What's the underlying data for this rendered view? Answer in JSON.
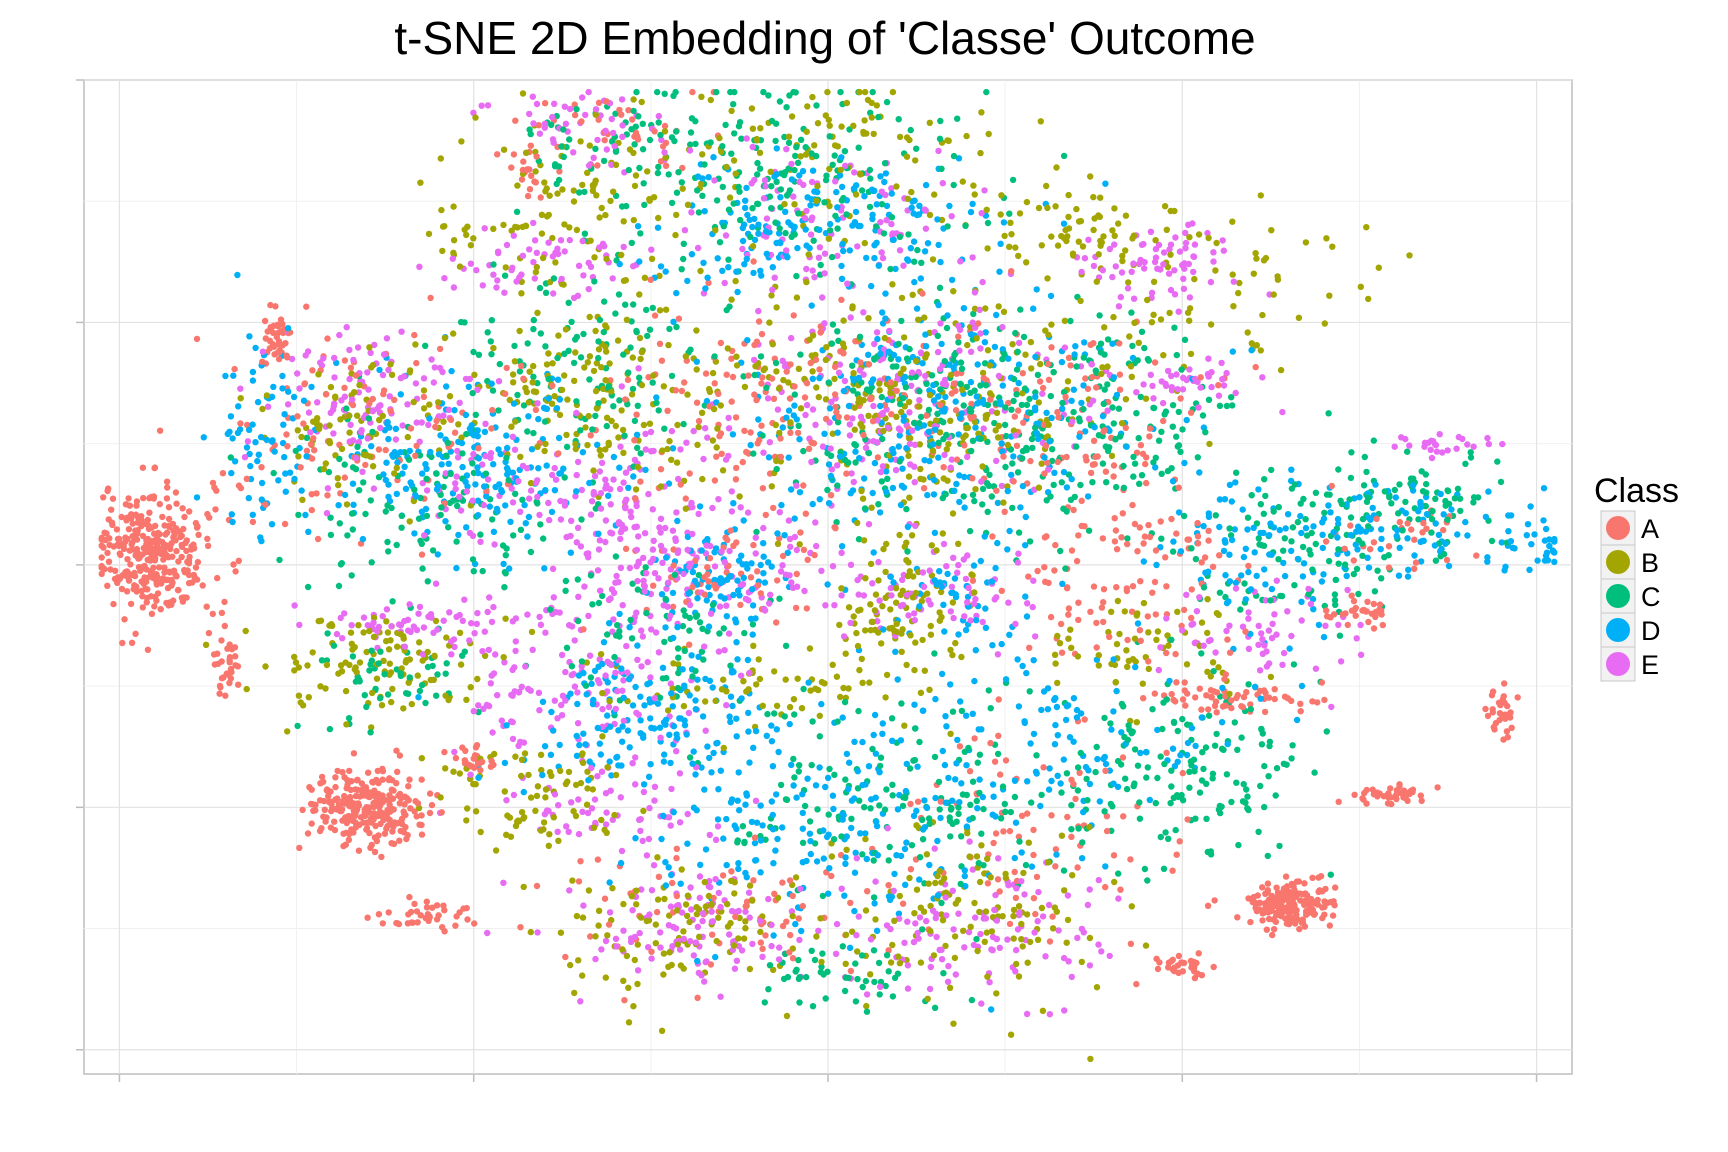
{
  "chart_data": {
    "type": "scatter",
    "title": "t-SNE 2D Embedding of 'Classe' Outcome",
    "xlabel": "",
    "ylabel": "",
    "xlim": [
      -42,
      42
    ],
    "ylim": [
      -42,
      40
    ],
    "x_ticks": [
      -40,
      -20,
      0,
      20,
      40
    ],
    "y_ticks": [
      -40,
      -20,
      0,
      20,
      40
    ],
    "grid": true,
    "axis_tick_labels_shown": false,
    "legend": {
      "title": "Class",
      "position": "right"
    },
    "series": [
      {
        "name": "A",
        "color": "#F8766D",
        "clusters": [
          {
            "cx": -38,
            "cy": 1,
            "sx": 1.6,
            "sy": 2.6,
            "n": 320
          },
          {
            "cx": -26,
            "cy": -20,
            "sx": 1.6,
            "sy": 1.6,
            "n": 260
          },
          {
            "cx": 26,
            "cy": -28,
            "sx": 1.2,
            "sy": 0.9,
            "n": 180
          },
          {
            "cx": -20,
            "cy": -16,
            "sx": 0.6,
            "sy": 0.5,
            "n": 25
          },
          {
            "cx": -31,
            "cy": 19,
            "sx": 0.4,
            "sy": 1.2,
            "n": 40
          },
          {
            "cx": -34,
            "cy": -8,
            "sx": 0.4,
            "sy": 1.5,
            "n": 30
          },
          {
            "cx": -17,
            "cy": 32,
            "sx": 0.4,
            "sy": 1.2,
            "n": 15
          },
          {
            "cx": 30,
            "cy": -4,
            "sx": 0.8,
            "sy": 0.6,
            "n": 30
          },
          {
            "cx": 32,
            "cy": -19,
            "sx": 1.4,
            "sy": 0.4,
            "n": 40
          },
          {
            "cx": 23,
            "cy": -11,
            "sx": 2.2,
            "sy": 0.6,
            "n": 60
          },
          {
            "cx": 38,
            "cy": -12,
            "sx": 0.5,
            "sy": 1.2,
            "n": 30
          },
          {
            "cx": 20,
            "cy": -33,
            "sx": 0.8,
            "sy": 0.5,
            "n": 30
          },
          {
            "cx": -22,
            "cy": -29,
            "sx": 1.6,
            "sy": 0.6,
            "n": 40
          },
          {
            "cx": -3,
            "cy": 14,
            "sx": 4.5,
            "sy": 4.5,
            "n": 140
          },
          {
            "cx": 12,
            "cy": 12,
            "sx": 4.0,
            "sy": 4.0,
            "n": 110
          },
          {
            "cx": 17,
            "cy": 0,
            "sx": 3.0,
            "sy": 5.0,
            "n": 120
          },
          {
            "cx": -26,
            "cy": 11,
            "sx": 5.0,
            "sy": 4.0,
            "n": 110
          },
          {
            "cx": -12,
            "cy": 36,
            "sx": 3.0,
            "sy": 2.0,
            "n": 40
          },
          {
            "cx": -5,
            "cy": -28,
            "sx": 5.0,
            "sy": 3.0,
            "n": 70
          },
          {
            "cx": 12,
            "cy": -22,
            "sx": 5.0,
            "sy": 5.0,
            "n": 80
          },
          {
            "cx": -6,
            "cy": 0,
            "sx": 3.0,
            "sy": 3.0,
            "n": 60
          },
          {
            "cx": 32,
            "cy": 2,
            "sx": 2.0,
            "sy": 2.0,
            "n": 30
          }
        ]
      },
      {
        "name": "B",
        "color": "#A3A500",
        "clusters": [
          {
            "cx": -14,
            "cy": 30,
            "sx": 4.0,
            "sy": 4.0,
            "n": 120
          },
          {
            "cx": 0,
            "cy": 35,
            "sx": 4.0,
            "sy": 3.0,
            "n": 90
          },
          {
            "cx": 5,
            "cy": 14,
            "sx": 6.0,
            "sy": 5.0,
            "n": 260
          },
          {
            "cx": -14,
            "cy": 14,
            "sx": 4.0,
            "sy": 4.0,
            "n": 160
          },
          {
            "cx": -25,
            "cy": -8,
            "sx": 3.0,
            "sy": 2.5,
            "n": 110
          },
          {
            "cx": -17,
            "cy": -19,
            "sx": 2.5,
            "sy": 2.0,
            "n": 80
          },
          {
            "cx": 4,
            "cy": -4,
            "sx": 2.0,
            "sy": 3.0,
            "n": 90
          },
          {
            "cx": -8,
            "cy": -30,
            "sx": 4.0,
            "sy": 3.0,
            "n": 110
          },
          {
            "cx": 8,
            "cy": -29,
            "sx": 4.0,
            "sy": 4.0,
            "n": 120
          },
          {
            "cx": 22,
            "cy": 24,
            "sx": 4.0,
            "sy": 3.0,
            "n": 70
          },
          {
            "cx": 18,
            "cy": -7,
            "sx": 3.0,
            "sy": 2.0,
            "n": 60
          },
          {
            "cx": -27,
            "cy": 11,
            "sx": 3.0,
            "sy": 3.0,
            "n": 70
          },
          {
            "cx": -4,
            "cy": -10,
            "sx": 5.0,
            "sy": 2.0,
            "n": 70
          },
          {
            "cx": 13,
            "cy": 28,
            "sx": 3.0,
            "sy": 2.0,
            "n": 60
          }
        ]
      },
      {
        "name": "C",
        "color": "#00BF7D",
        "clusters": [
          {
            "cx": -2,
            "cy": 32,
            "sx": 5.0,
            "sy": 4.0,
            "n": 180
          },
          {
            "cx": 8,
            "cy": 12,
            "sx": 6.0,
            "sy": 5.0,
            "n": 270
          },
          {
            "cx": -22,
            "cy": 5,
            "sx": 4.5,
            "sy": 4.0,
            "n": 140
          },
          {
            "cx": -14,
            "cy": 16,
            "sx": 4.0,
            "sy": 4.0,
            "n": 120
          },
          {
            "cx": 20,
            "cy": -17,
            "sx": 4.0,
            "sy": 4.0,
            "n": 160
          },
          {
            "cx": 4,
            "cy": -20,
            "sx": 5.0,
            "sy": 4.0,
            "n": 150
          },
          {
            "cx": 26,
            "cy": 2,
            "sx": 4.0,
            "sy": 3.0,
            "n": 110
          },
          {
            "cx": 33,
            "cy": 5,
            "sx": 3.0,
            "sy": 2.0,
            "n": 70
          },
          {
            "cx": -9,
            "cy": -6,
            "sx": 3.0,
            "sy": 3.0,
            "n": 70
          },
          {
            "cx": 17,
            "cy": 13,
            "sx": 2.5,
            "sy": 4.0,
            "n": 70
          },
          {
            "cx": -12,
            "cy": 34,
            "sx": 3.0,
            "sy": 2.5,
            "n": 60
          },
          {
            "cx": 1,
            "cy": -34,
            "sx": 3.0,
            "sy": 1.5,
            "n": 50
          },
          {
            "cx": -25,
            "cy": -9,
            "sx": 2.5,
            "sy": 2.0,
            "n": 50
          }
        ]
      },
      {
        "name": "D",
        "color": "#00B0F6",
        "clusters": [
          {
            "cx": 0,
            "cy": 28,
            "sx": 5.0,
            "sy": 3.0,
            "n": 180
          },
          {
            "cx": 6,
            "cy": 12,
            "sx": 6.0,
            "sy": 5.0,
            "n": 280
          },
          {
            "cx": -20,
            "cy": 8,
            "sx": 5.0,
            "sy": 3.5,
            "n": 200
          },
          {
            "cx": -10,
            "cy": -12,
            "sx": 4.0,
            "sy": 3.0,
            "n": 170
          },
          {
            "cx": -6,
            "cy": -1,
            "sx": 2.5,
            "sy": 2.0,
            "n": 90
          },
          {
            "cx": 0,
            "cy": -22,
            "sx": 5.0,
            "sy": 4.0,
            "n": 170
          },
          {
            "cx": 12,
            "cy": -15,
            "sx": 5.0,
            "sy": 4.0,
            "n": 140
          },
          {
            "cx": 24,
            "cy": 1,
            "sx": 3.0,
            "sy": 3.0,
            "n": 90
          },
          {
            "cx": 33,
            "cy": 3,
            "sx": 4.0,
            "sy": 2.0,
            "n": 90
          },
          {
            "cx": 40,
            "cy": 1,
            "sx": 1.0,
            "sy": 0.8,
            "n": 25
          },
          {
            "cx": -32,
            "cy": 11,
            "sx": 1.5,
            "sy": 4.0,
            "n": 70
          },
          {
            "cx": 7,
            "cy": -3,
            "sx": 2.0,
            "sy": 2.0,
            "n": 50
          }
        ]
      },
      {
        "name": "E",
        "color": "#E76BF3",
        "clusters": [
          {
            "cx": -16,
            "cy": 25,
            "sx": 3.0,
            "sy": 1.5,
            "n": 60
          },
          {
            "cx": -14,
            "cy": 36,
            "sx": 3.0,
            "sy": 2.0,
            "n": 50
          },
          {
            "cx": -26,
            "cy": 14,
            "sx": 3.0,
            "sy": 3.0,
            "n": 110
          },
          {
            "cx": -14,
            "cy": 6,
            "sx": 5.0,
            "sy": 3.0,
            "n": 140
          },
          {
            "cx": -8,
            "cy": 0,
            "sx": 4.0,
            "sy": 2.5,
            "n": 130
          },
          {
            "cx": -14,
            "cy": -10,
            "sx": 4.0,
            "sy": 4.0,
            "n": 160
          },
          {
            "cx": -23,
            "cy": -5,
            "sx": 3.0,
            "sy": 1.0,
            "n": 60
          },
          {
            "cx": -13,
            "cy": -21,
            "sx": 3.0,
            "sy": 1.5,
            "n": 50
          },
          {
            "cx": -8,
            "cy": -30,
            "sx": 3.0,
            "sy": 2.5,
            "n": 110
          },
          {
            "cx": 8,
            "cy": -30,
            "sx": 4.0,
            "sy": 3.0,
            "n": 120
          },
          {
            "cx": 4,
            "cy": 14,
            "sx": 5.0,
            "sy": 4.0,
            "n": 190
          },
          {
            "cx": 18,
            "cy": 25,
            "sx": 2.5,
            "sy": 1.5,
            "n": 70
          },
          {
            "cx": 0,
            "cy": 28,
            "sx": 4.0,
            "sy": 3.0,
            "n": 90
          },
          {
            "cx": 24,
            "cy": -5,
            "sx": 3.0,
            "sy": 2.0,
            "n": 60
          },
          {
            "cx": 6,
            "cy": -2,
            "sx": 3.0,
            "sy": 2.0,
            "n": 80
          },
          {
            "cx": 35,
            "cy": 10,
            "sx": 1.5,
            "sy": 0.6,
            "n": 25
          },
          {
            "cx": 20,
            "cy": 15,
            "sx": 2.0,
            "sy": 1.0,
            "n": 40
          }
        ]
      }
    ]
  }
}
